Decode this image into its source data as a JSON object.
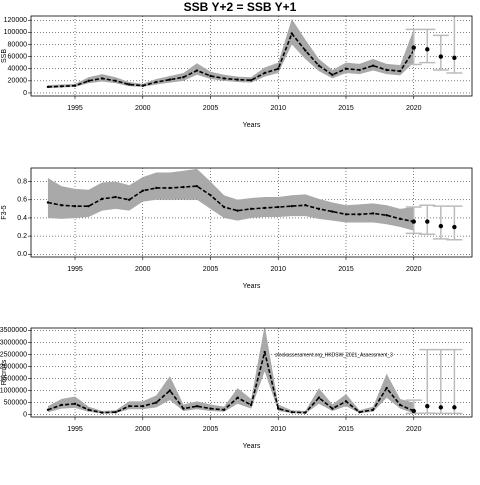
{
  "chart_data": [
    {
      "type": "line",
      "title": "SSB Y+2 = SSB Y+1",
      "ylabel": "SSB",
      "xlabel": "Years",
      "x": [
        1993,
        1994,
        1995,
        1996,
        1997,
        1998,
        1999,
        2000,
        2001,
        2002,
        2003,
        2004,
        2005,
        2006,
        2007,
        2008,
        2009,
        2010,
        2011,
        2012,
        2013,
        2014,
        2015,
        2016,
        2017,
        2018,
        2019,
        2020
      ],
      "values": [
        10000,
        11000,
        12000,
        20000,
        24000,
        20000,
        14000,
        12000,
        18000,
        22000,
        26000,
        37000,
        28000,
        24000,
        22000,
        21000,
        33000,
        40000,
        98000,
        70000,
        45000,
        30000,
        40000,
        38000,
        45000,
        38000,
        36000,
        70000
      ],
      "lower": [
        8000,
        9000,
        10000,
        16000,
        19000,
        16000,
        11000,
        10000,
        14000,
        17000,
        20000,
        30000,
        23000,
        20000,
        18000,
        17000,
        27000,
        33000,
        80000,
        56000,
        36000,
        24000,
        33000,
        31000,
        37000,
        31000,
        29000,
        50000
      ],
      "upper": [
        13000,
        14000,
        15000,
        26000,
        31000,
        26000,
        18000,
        15000,
        23000,
        28000,
        33000,
        49000,
        35000,
        30000,
        27000,
        26000,
        42000,
        50000,
        122000,
        88000,
        56000,
        38000,
        50000,
        48000,
        56000,
        48000,
        46000,
        105000
      ],
      "points": {
        "x": [
          2020,
          2021,
          2022,
          2023
        ],
        "values": [
          75000,
          72000,
          60000,
          58000
        ],
        "lower": [
          47000,
          50000,
          38000,
          33000
        ],
        "upper": [
          105000,
          105000,
          95000,
          130000
        ]
      },
      "color": "#000000",
      "band_color": "#a9a9a9",
      "error_color": "#bbbbbb",
      "xlim": [
        1991.75,
        2024.3
      ],
      "xticks": [
        1995,
        2000,
        2005,
        2010,
        2015,
        2020
      ],
      "ylim": [
        -5000,
        127000
      ],
      "yticks": [
        0,
        20000,
        40000,
        60000,
        80000,
        100000,
        120000
      ],
      "grid": true
    },
    {
      "type": "line",
      "ylabel": "F3-5",
      "xlabel": "Years",
      "x": [
        1993,
        1994,
        1995,
        1996,
        1997,
        1998,
        1999,
        2000,
        2001,
        2002,
        2003,
        2004,
        2005,
        2006,
        2007,
        2008,
        2009,
        2010,
        2011,
        2012,
        2013,
        2014,
        2015,
        2016,
        2017,
        2018,
        2019,
        2020
      ],
      "values": [
        0.57,
        0.54,
        0.53,
        0.53,
        0.61,
        0.63,
        0.6,
        0.7,
        0.73,
        0.73,
        0.74,
        0.75,
        0.65,
        0.52,
        0.48,
        0.5,
        0.51,
        0.52,
        0.53,
        0.54,
        0.5,
        0.47,
        0.44,
        0.44,
        0.45,
        0.43,
        0.39,
        0.36
      ],
      "lower": [
        0.4,
        0.39,
        0.4,
        0.41,
        0.48,
        0.5,
        0.48,
        0.58,
        0.6,
        0.6,
        0.6,
        0.6,
        0.5,
        0.4,
        0.37,
        0.4,
        0.41,
        0.41,
        0.42,
        0.42,
        0.39,
        0.37,
        0.35,
        0.35,
        0.35,
        0.33,
        0.3,
        0.26
      ],
      "upper": [
        0.84,
        0.75,
        0.72,
        0.71,
        0.79,
        0.8,
        0.76,
        0.85,
        0.9,
        0.9,
        0.92,
        0.94,
        0.8,
        0.65,
        0.6,
        0.62,
        0.63,
        0.63,
        0.65,
        0.66,
        0.61,
        0.57,
        0.54,
        0.55,
        0.56,
        0.54,
        0.5,
        0.52
      ],
      "points": {
        "x": [
          2020,
          2021,
          2022,
          2023
        ],
        "values": [
          0.36,
          0.36,
          0.31,
          0.3
        ],
        "lower": [
          0.23,
          0.22,
          0.17,
          0.16
        ],
        "upper": [
          0.52,
          0.54,
          0.53,
          0.53
        ]
      },
      "color": "#000000",
      "band_color": "#a9a9a9",
      "error_color": "#bbbbbb",
      "xlim": [
        1991.75,
        2024.3
      ],
      "xticks": [
        1995,
        2000,
        2005,
        2010,
        2015,
        2020
      ],
      "ylim": [
        -0.03,
        0.95
      ],
      "yticks": [
        {
          "value": 0,
          "label": "0.0"
        },
        0.2,
        0.4,
        0.6,
        0.8
      ],
      "grid": true
    },
    {
      "type": "line",
      "ylabel": "Recruits",
      "xlabel": "Years",
      "annotation": "stockassessment.org_HKDSW_2021_Assessment_3",
      "x": [
        1993,
        1994,
        1995,
        1996,
        1997,
        1998,
        1999,
        2000,
        2001,
        2002,
        2003,
        2004,
        2005,
        2006,
        2007,
        2008,
        2009,
        2010,
        2011,
        2012,
        2013,
        2014,
        2015,
        2016,
        2017,
        2018,
        2019,
        2020
      ],
      "values": [
        200000,
        400000,
        450000,
        200000,
        80000,
        100000,
        350000,
        350000,
        500000,
        1000000,
        250000,
        350000,
        250000,
        200000,
        700000,
        400000,
        2600000,
        250000,
        100000,
        80000,
        700000,
        250000,
        550000,
        100000,
        200000,
        1100000,
        400000,
        150000
      ],
      "lower": [
        100000,
        250000,
        280000,
        120000,
        40000,
        60000,
        220000,
        220000,
        300000,
        600000,
        150000,
        220000,
        150000,
        120000,
        450000,
        250000,
        1800000,
        150000,
        60000,
        40000,
        450000,
        150000,
        350000,
        60000,
        120000,
        700000,
        250000,
        50000
      ],
      "upper": [
        350000,
        650000,
        750000,
        330000,
        150000,
        180000,
        550000,
        550000,
        800000,
        1600000,
        420000,
        550000,
        420000,
        330000,
        1100000,
        650000,
        3700000,
        420000,
        180000,
        150000,
        1100000,
        420000,
        850000,
        180000,
        330000,
        1700000,
        650000,
        500000
      ],
      "points": {
        "x": [
          2020,
          2021,
          2022,
          2023
        ],
        "values": [
          150000,
          350000,
          300000,
          300000
        ],
        "lower": [
          50000,
          60000,
          50000,
          50000
        ],
        "upper": [
          600000,
          2700000,
          2700000,
          2700000
        ]
      },
      "color": "#000000",
      "band_color": "#a9a9a9",
      "error_color": "#bbbbbb",
      "xlim": [
        1991.75,
        2024.3
      ],
      "xticks": [
        1995,
        2000,
        2005,
        2010,
        2015,
        2020
      ],
      "ylim": [
        -100000,
        3600000
      ],
      "yticks": [
        0,
        500000,
        1000000,
        1500000,
        2000000,
        2500000,
        3000000,
        3500000
      ],
      "grid": true
    }
  ]
}
